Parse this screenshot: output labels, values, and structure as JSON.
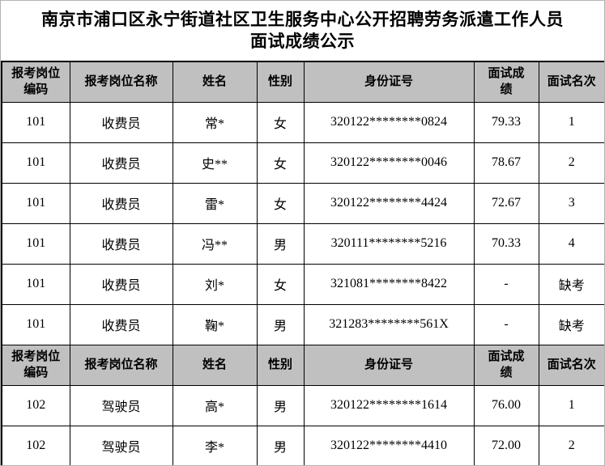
{
  "title": {
    "line1": "南京市浦口区永宁街道社区卫生服务中心公开招聘劳务派遣工作人员",
    "line2": "面试成绩公示"
  },
  "colors": {
    "background": "#ffffff",
    "page_border": "#b3b3b3",
    "grid_border": "#000000",
    "header_bg": "#c0c0c0",
    "text": "#000000"
  },
  "table": {
    "headers": [
      "报考岗位编码",
      "报考岗位名称",
      "姓名",
      "性别",
      "身份证号",
      "面试成绩",
      "面试名次"
    ],
    "sections": [
      {
        "rows": [
          {
            "code": "101",
            "position": "收费员",
            "name": "常*",
            "gender": "女",
            "id_number": "320122********0824",
            "score": "79.33",
            "rank": "1"
          },
          {
            "code": "101",
            "position": "收费员",
            "name": "史**",
            "gender": "女",
            "id_number": "320122********0046",
            "score": "78.67",
            "rank": "2"
          },
          {
            "code": "101",
            "position": "收费员",
            "name": "雷*",
            "gender": "女",
            "id_number": "320122********4424",
            "score": "72.67",
            "rank": "3"
          },
          {
            "code": "101",
            "position": "收费员",
            "name": "冯**",
            "gender": "男",
            "id_number": "320111********5216",
            "score": "70.33",
            "rank": "4"
          },
          {
            "code": "101",
            "position": "收费员",
            "name": "刘*",
            "gender": "女",
            "id_number": "321081********8422",
            "score": "-",
            "rank": "缺考"
          },
          {
            "code": "101",
            "position": "收费员",
            "name": "鞠*",
            "gender": "男",
            "id_number": "321283********561X",
            "score": "-",
            "rank": "缺考"
          }
        ]
      },
      {
        "rows": [
          {
            "code": "102",
            "position": "驾驶员",
            "name": "高*",
            "gender": "男",
            "id_number": "320122********1614",
            "score": "76.00",
            "rank": "1"
          },
          {
            "code": "102",
            "position": "驾驶员",
            "name": "李*",
            "gender": "男",
            "id_number": "320122********4410",
            "score": "72.00",
            "rank": "2"
          }
        ]
      }
    ]
  }
}
